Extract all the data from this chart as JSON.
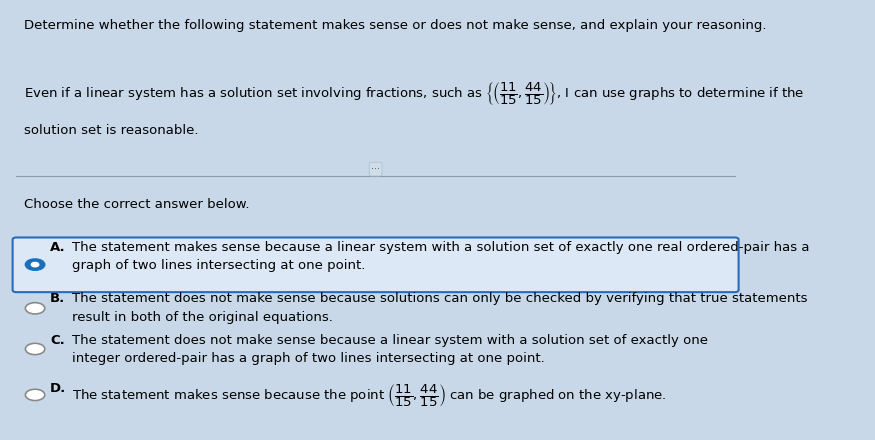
{
  "bg_color": "#c8d8e8",
  "title_text": "Determine whether the following statement makes sense or does not make sense, and explain your reasoning.",
  "choose_text": "Choose the correct answer below.",
  "option_A_label": "A.",
  "option_A_text1": "The statement makes sense because a linear system with a solution set of exactly one real ordered-pair has a",
  "option_A_text2": "graph of two lines intersecting at one point.",
  "option_B_label": "B.",
  "option_B_text1": "The statement does not make sense because solutions can only be checked by verifying that true statements",
  "option_B_text2": "result in both of the original equations.",
  "option_C_label": "C.",
  "option_C_text1": "The statement does not make sense because a linear system with a solution set of exactly one",
  "option_C_text2": "integer ordered-pair has a graph of two lines intersecting at one point.",
  "option_D_label": "D.",
  "radio_color_selected": "#1a6fbd",
  "radio_color_unselected": "#888888",
  "box_border_color": "#2a6aba",
  "box_fill_color": "#dce8f5",
  "font_size_body": 9.5
}
